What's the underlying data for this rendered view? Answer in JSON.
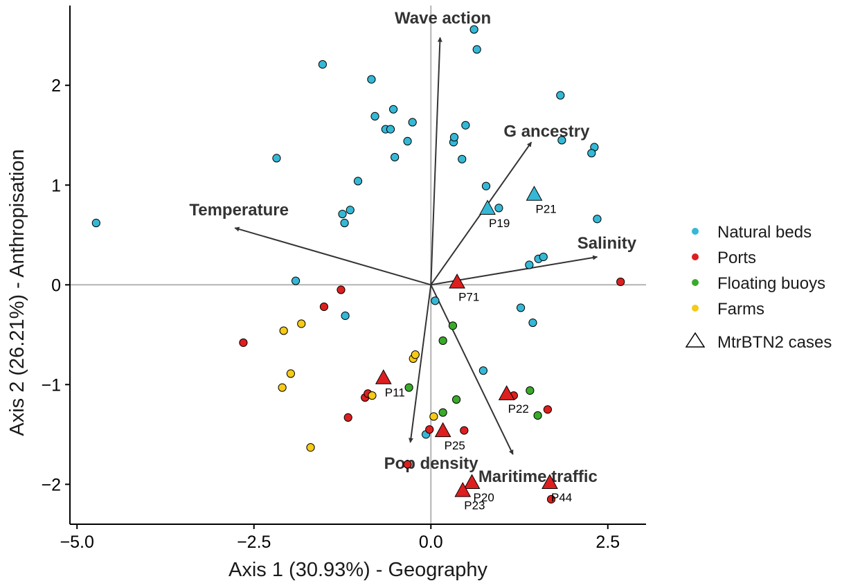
{
  "chart_data": {
    "type": "scatter",
    "title": "",
    "xlabel": "Axis 1 (30.93%) - Geography",
    "ylabel": "Axis 2 (26.21%) - Anthropisation",
    "xlim": [
      -5.1,
      3.04
    ],
    "ylim": [
      -2.4,
      2.8
    ],
    "xticks": [
      {
        "v": -5.0,
        "label": "−5.0"
      },
      {
        "v": -2.5,
        "label": "−2.5"
      },
      {
        "v": 0.0,
        "label": "0.0"
      },
      {
        "v": 2.5,
        "label": "2.5"
      }
    ],
    "yticks": [
      {
        "v": -2,
        "label": "−2"
      },
      {
        "v": -1,
        "label": "−1"
      },
      {
        "v": 0,
        "label": "0"
      },
      {
        "v": 1,
        "label": "1"
      },
      {
        "v": 2,
        "label": "2"
      }
    ],
    "grid": false,
    "zero_lines": true,
    "legend_position": "right",
    "series": [
      {
        "name": "Natural beds",
        "color": "#35B8D6",
        "points": [
          [
            -4.73,
            0.62
          ],
          [
            -2.18,
            1.27
          ],
          [
            -1.53,
            2.21
          ],
          [
            -0.84,
            2.06
          ],
          [
            -0.79,
            1.69
          ],
          [
            -0.53,
            1.76
          ],
          [
            -0.64,
            1.56
          ],
          [
            -0.57,
            1.56
          ],
          [
            -0.51,
            1.28
          ],
          [
            -0.33,
            1.44
          ],
          [
            -0.26,
            1.63
          ],
          [
            -1.03,
            1.04
          ],
          [
            -1.14,
            0.75
          ],
          [
            -1.25,
            0.71
          ],
          [
            -1.22,
            0.62
          ],
          [
            0.61,
            2.56
          ],
          [
            0.65,
            2.36
          ],
          [
            0.32,
            1.43
          ],
          [
            0.33,
            1.48
          ],
          [
            0.49,
            1.6
          ],
          [
            0.44,
            1.26
          ],
          [
            0.78,
            0.99
          ],
          [
            0.96,
            0.77
          ],
          [
            1.83,
            1.9
          ],
          [
            1.85,
            1.45
          ],
          [
            2.31,
            1.38
          ],
          [
            2.27,
            1.32
          ],
          [
            2.35,
            0.66
          ],
          [
            1.39,
            0.2
          ],
          [
            1.52,
            0.26
          ],
          [
            1.59,
            0.28
          ],
          [
            -1.91,
            0.04
          ],
          [
            -1.21,
            -0.31
          ],
          [
            0.06,
            -0.16
          ],
          [
            1.27,
            -0.23
          ],
          [
            1.44,
            -0.38
          ],
          [
            0.74,
            -0.86
          ],
          [
            -0.07,
            -1.5
          ]
        ]
      },
      {
        "name": "Ports",
        "color": "#DD1F1F",
        "points": [
          [
            2.68,
            0.03
          ],
          [
            -1.27,
            -0.05
          ],
          [
            -1.51,
            -0.22
          ],
          [
            -2.65,
            -0.58
          ],
          [
            -0.93,
            -1.13
          ],
          [
            -0.89,
            -1.09
          ],
          [
            -1.17,
            -1.33
          ],
          [
            -0.02,
            -1.45
          ],
          [
            0.47,
            -1.46
          ],
          [
            1.17,
            -1.11
          ],
          [
            1.65,
            -1.25
          ],
          [
            -0.33,
            -1.8
          ],
          [
            1.7,
            -2.15
          ]
        ]
      },
      {
        "name": "Floating buoys",
        "color": "#3AAA2A",
        "points": [
          [
            0.31,
            -0.41
          ],
          [
            0.17,
            -0.56
          ],
          [
            -0.31,
            -1.03
          ],
          [
            0.36,
            -1.15
          ],
          [
            0.17,
            -1.28
          ],
          [
            1.4,
            -1.06
          ],
          [
            1.51,
            -1.31
          ]
        ]
      },
      {
        "name": "Farms",
        "color": "#F6CA16",
        "points": [
          [
            -2.08,
            -0.46
          ],
          [
            -1.83,
            -0.39
          ],
          [
            -1.98,
            -0.89
          ],
          [
            -2.1,
            -1.03
          ],
          [
            -0.25,
            -0.74
          ],
          [
            -0.22,
            -0.7
          ],
          [
            -0.83,
            -1.11
          ],
          [
            0.04,
            -1.32
          ],
          [
            -1.7,
            -1.63
          ]
        ]
      }
    ],
    "cases": {
      "name": "MtrBTN2 cases",
      "points": [
        {
          "x": 1.46,
          "y": 0.9,
          "label": "P21",
          "color": "#35B8D6"
        },
        {
          "x": 0.8,
          "y": 0.76,
          "label": "P19",
          "color": "#35B8D6"
        },
        {
          "x": 0.37,
          "y": 0.02,
          "label": "P71",
          "color": "#DD1F1F"
        },
        {
          "x": -0.67,
          "y": -0.94,
          "label": "P11",
          "color": "#DD1F1F"
        },
        {
          "x": 1.07,
          "y": -1.1,
          "label": "P22",
          "color": "#DD1F1F"
        },
        {
          "x": 0.17,
          "y": -1.47,
          "label": "P25",
          "color": "#DD1F1F"
        },
        {
          "x": 0.58,
          "y": -1.99,
          "label": "P20",
          "color": "#DD1F1F"
        },
        {
          "x": 0.45,
          "y": -2.07,
          "label": "P23",
          "color": "#DD1F1F"
        },
        {
          "x": 1.68,
          "y": -1.99,
          "label": "P44",
          "color": "#DD1F1F"
        }
      ]
    },
    "vectors": [
      {
        "name": "Wave action",
        "x": 0.13,
        "y": 2.48
      },
      {
        "name": "G ancestry",
        "x": 1.42,
        "y": 1.43
      },
      {
        "name": "Temperature",
        "x": -2.77,
        "y": 0.57
      },
      {
        "name": "Salinity",
        "x": 2.35,
        "y": 0.28
      },
      {
        "name": "Pop density",
        "x": -0.29,
        "y": -1.58
      },
      {
        "name": "Maritime traffic",
        "x": 1.16,
        "y": -1.7
      }
    ]
  }
}
